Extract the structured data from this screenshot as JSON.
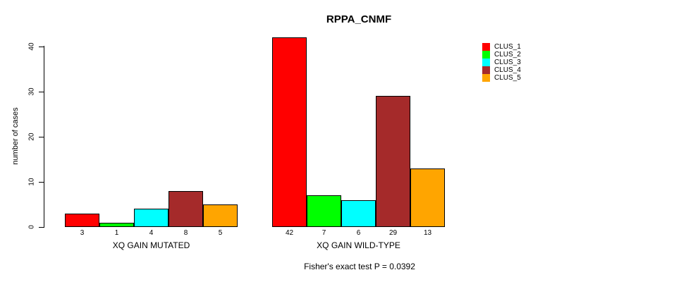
{
  "title": "RPPA_CNMF",
  "y_axis": {
    "label": "number of cases",
    "ticks": [
      0,
      10,
      20,
      30,
      40
    ]
  },
  "footer": "Fisher's exact test P = 0.0392",
  "legend": {
    "items": [
      {
        "label": "CLUS_1",
        "color": "#FF0000"
      },
      {
        "label": "CLUS_2",
        "color": "#00FF00"
      },
      {
        "label": "CLUS_3",
        "color": "#00FFFF"
      },
      {
        "label": "CLUS_4",
        "color": "#A52A2A"
      },
      {
        "label": "CLUS_5",
        "color": "#FFA500"
      }
    ]
  },
  "chart_data": {
    "type": "bar",
    "title": "RPPA_CNMF",
    "ylabel": "number of cases",
    "ylim": [
      0,
      40
    ],
    "grid": false,
    "legend_position": "right",
    "series_names": [
      "CLUS_1",
      "CLUS_2",
      "CLUS_3",
      "CLUS_4",
      "CLUS_5"
    ],
    "series_colors": [
      "#FF0000",
      "#00FF00",
      "#00FFFF",
      "#A52A2A",
      "#FFA500"
    ],
    "groups": [
      {
        "label": "XQ GAIN MUTATED",
        "values": [
          3,
          1,
          4,
          8,
          5
        ]
      },
      {
        "label": "XQ GAIN WILD-TYPE",
        "values": [
          42,
          7,
          6,
          29,
          13
        ]
      }
    ],
    "annotation": "Fisher's exact test P = 0.0392"
  }
}
